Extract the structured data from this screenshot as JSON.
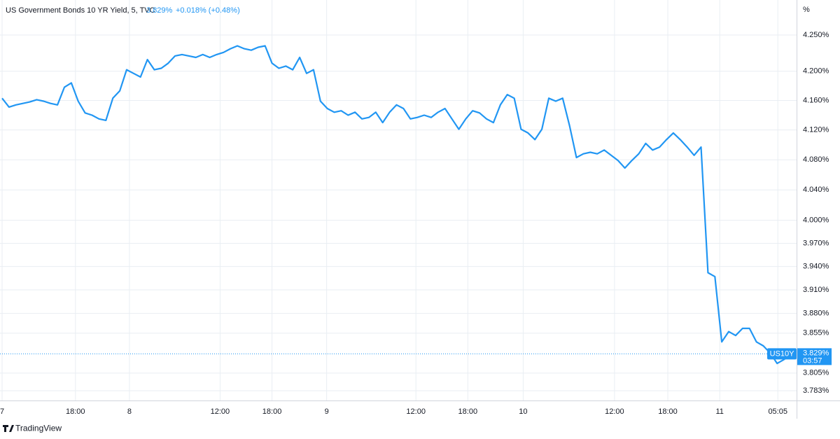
{
  "chart_data": {
    "type": "line",
    "title": "US Government Bonds 10 YR Yield, 5, TVC",
    "price": {
      "value": 3.829,
      "label": "3.829%"
    },
    "change": "+0.018% (+0.48%)",
    "symbol": "US10Y",
    "countdown": "03:57",
    "y_unit": "%",
    "brand": "TradingView",
    "color": "#2196f3",
    "log_scale": true,
    "grid": true,
    "values": [
      4.163,
      4.151,
      4.154,
      4.156,
      4.158,
      4.161,
      4.159,
      4.156,
      4.154,
      4.178,
      4.184,
      4.159,
      4.143,
      4.14,
      4.135,
      4.133,
      4.163,
      4.173,
      4.202,
      4.197,
      4.192,
      4.216,
      4.202,
      4.204,
      4.211,
      4.221,
      4.223,
      4.221,
      4.219,
      4.223,
      4.219,
      4.223,
      4.226,
      4.231,
      4.235,
      4.231,
      4.229,
      4.233,
      4.235,
      4.211,
      4.204,
      4.207,
      4.202,
      4.219,
      4.197,
      4.202,
      4.159,
      4.149,
      4.144,
      4.146,
      4.14,
      4.144,
      4.135,
      4.137,
      4.144,
      4.13,
      4.144,
      4.154,
      4.149,
      4.135,
      4.137,
      4.14,
      4.137,
      4.144,
      4.149,
      4.135,
      4.121,
      4.135,
      4.146,
      4.143,
      4.135,
      4.13,
      4.154,
      4.168,
      4.163,
      4.121,
      4.116,
      4.107,
      4.121,
      4.163,
      4.159,
      4.163,
      4.126,
      4.083,
      4.088,
      4.09,
      4.088,
      4.093,
      4.086,
      4.079,
      4.069,
      4.079,
      4.088,
      4.102,
      4.093,
      4.097,
      4.107,
      4.116,
      4.107,
      4.097,
      4.086,
      4.097,
      3.932,
      3.927,
      3.844,
      3.857,
      3.852,
      3.861,
      3.861,
      3.844,
      3.839,
      3.83,
      3.817,
      3.822,
      3.829
    ],
    "xlim": [
      0,
      114
    ],
    "xticks": [
      {
        "value": 0,
        "label": "7"
      },
      {
        "value": 10.6,
        "label": "18:00"
      },
      {
        "value": 18.4,
        "label": "8"
      },
      {
        "value": 31.5,
        "label": "12:00"
      },
      {
        "value": 39,
        "label": "18:00"
      },
      {
        "value": 46.9,
        "label": "9"
      },
      {
        "value": 59.8,
        "label": "12:00"
      },
      {
        "value": 67.3,
        "label": "18:00"
      },
      {
        "value": 75.3,
        "label": "10"
      },
      {
        "value": 88.5,
        "label": "12:00"
      },
      {
        "value": 96.2,
        "label": "18:00"
      },
      {
        "value": 103.7,
        "label": "11"
      },
      {
        "value": 112.1,
        "label": "05:05"
      }
    ],
    "ylim": [
      3.771,
      4.299
    ],
    "yticks": [
      {
        "value": 4.25,
        "label": "4.250%"
      },
      {
        "value": 4.2,
        "label": "4.200%"
      },
      {
        "value": 4.16,
        "label": "4.160%"
      },
      {
        "value": 4.12,
        "label": "4.120%"
      },
      {
        "value": 4.08,
        "label": "4.080%"
      },
      {
        "value": 4.04,
        "label": "4.040%"
      },
      {
        "value": 4.0,
        "label": "4.000%"
      },
      {
        "value": 3.97,
        "label": "3.970%"
      },
      {
        "value": 3.94,
        "label": "3.940%"
      },
      {
        "value": 3.91,
        "label": "3.910%"
      },
      {
        "value": 3.88,
        "label": "3.880%"
      },
      {
        "value": 3.855,
        "label": "3.855%"
      },
      {
        "value": 3.805,
        "label": "3.805%"
      },
      {
        "value": 3.783,
        "label": "3.783%"
      }
    ]
  }
}
